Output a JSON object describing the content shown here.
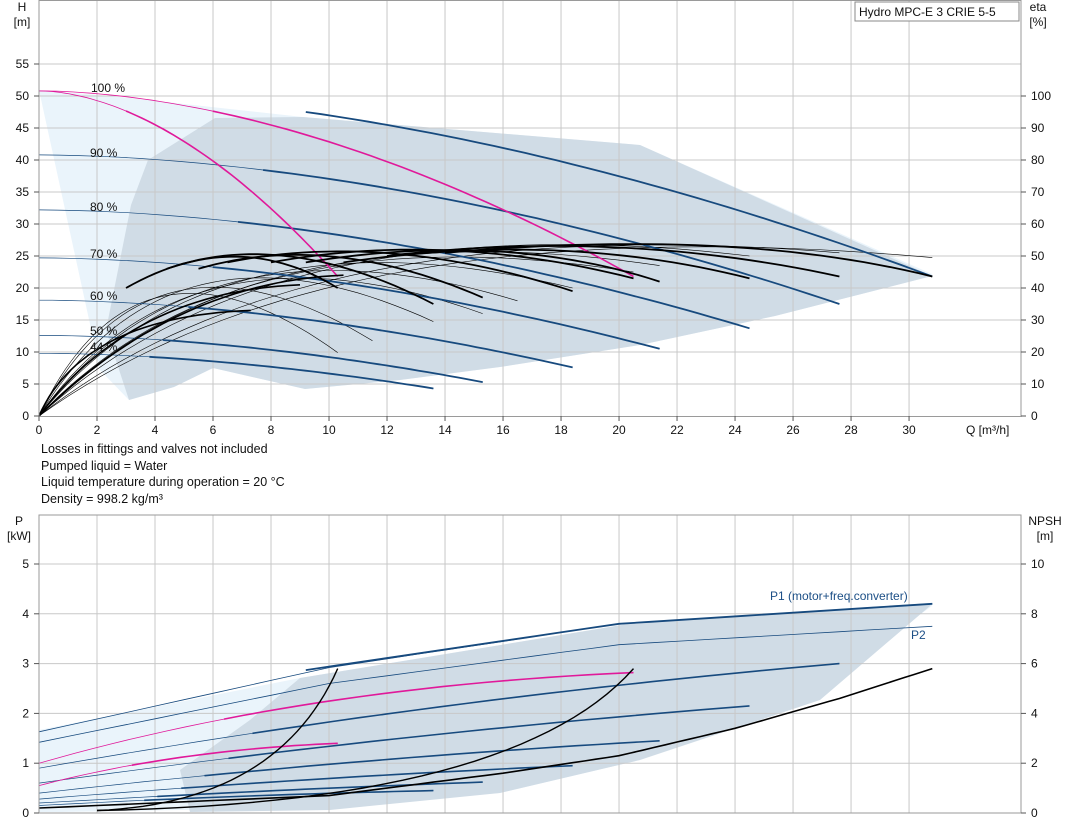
{
  "top_chart": {
    "title": "Hydro MPC-E 3 CRIE 5-5",
    "y_left_label": [
      "H",
      "[m]"
    ],
    "y_right_label": [
      "eta",
      "[%]"
    ],
    "x_label": "Q [m³/h]",
    "x_ticks": [
      0,
      2,
      4,
      6,
      8,
      10,
      12,
      14,
      16,
      18,
      20,
      22,
      24,
      26,
      28,
      30
    ],
    "y_left_ticks": [
      0,
      5,
      10,
      15,
      20,
      25,
      30,
      35,
      40,
      45,
      50,
      55
    ],
    "y_right_ticks": [
      0,
      10,
      20,
      30,
      40,
      50,
      60,
      70,
      80,
      90,
      100
    ],
    "speed_labels": [
      "100 %",
      "90 %",
      "80 %",
      "70 %",
      "60 %",
      "50 %",
      "44 %"
    ]
  },
  "notes": [
    "Losses in fittings and valves not included",
    "Pumped liquid = Water",
    "Liquid temperature during operation = 20 °C",
    "Density = 998.2 kg/m³"
  ],
  "bottom_chart": {
    "y_left_label": [
      "P",
      "[kW]"
    ],
    "y_right_label": [
      "NPSH",
      "[m]"
    ],
    "y_left_ticks": [
      0,
      1,
      2,
      3,
      4,
      5
    ],
    "y_right_ticks": [
      0,
      2,
      4,
      6,
      8,
      10
    ],
    "series_labels": [
      "P1 (motor+freq.converter)",
      "P2"
    ]
  },
  "colors": {
    "grid": "#c8c8c8",
    "area_dark": "#d0dce6",
    "area_light": "#eaf4fb",
    "curve_blue": "#174a7e",
    "curve_magenta": "#e0199a",
    "curve_black": "#000000",
    "label_blue": "#1c4f86"
  },
  "chart_data": [
    {
      "type": "line",
      "title": "Hydro MPC-E 3 CRIE 5-5",
      "xlabel": "Q [m³/h]",
      "ylabel": "H [m]",
      "y2label": "eta [%]",
      "xlim": [
        0,
        31
      ],
      "ylim": [
        0,
        55
      ],
      "y2lim": [
        0,
        100
      ],
      "grid": true,
      "head_curves": [
        {
          "name": "100 %",
          "pumps": 3,
          "H0": 50.8,
          "Qmax": 30.8,
          "Hend": 21.8
        },
        {
          "name": "100 %",
          "pumps": 2,
          "H0": 50.8,
          "Qmax": 20.5,
          "Hend": 21.8
        },
        {
          "name": "100 %",
          "pumps": 1,
          "H0": 50.8,
          "Qmax": 10.3,
          "Hend": 21.8
        },
        {
          "name": "90 %",
          "H0": 40.8,
          "Qmax": 27.6,
          "Hend": 17.5
        },
        {
          "name": "80 %",
          "H0": 32.2,
          "Qmax": 24.5,
          "Hend": 13.7
        },
        {
          "name": "70 %",
          "H0": 24.7,
          "Qmax": 21.4,
          "Hend": 10.5
        },
        {
          "name": "60 %",
          "H0": 18.1,
          "Qmax": 18.4,
          "Hend": 7.6
        },
        {
          "name": "50 %",
          "H0": 12.6,
          "Qmax": 15.3,
          "Hend": 5.3
        },
        {
          "name": "44 %",
          "H0": 9.8,
          "Qmax": 13.6,
          "Hend": 4.3
        }
      ],
      "efficiency_curves": [
        {
          "pumps": 1,
          "points": [
            [
              0,
              0
            ],
            [
              2,
              27
            ],
            [
              4,
              43
            ],
            [
              6,
              51
            ],
            [
              8,
              54
            ],
            [
              10,
              53
            ]
          ]
        },
        {
          "pumps": 2,
          "points": [
            [
              0,
              0
            ],
            [
              4,
              32
            ],
            [
              8,
              47
            ],
            [
              12,
              52.5
            ],
            [
              16,
              54
            ],
            [
              20.5,
              53
            ]
          ]
        },
        {
          "pumps": 3,
          "points": [
            [
              0,
              0
            ],
            [
              6,
              34
            ],
            [
              12,
              47
            ],
            [
              18,
              53
            ],
            [
              24,
              54
            ],
            [
              30.8,
              50
            ]
          ]
        }
      ]
    },
    {
      "type": "line",
      "xlabel": "Q [m³/h]",
      "ylabel": "P [kW]",
      "y2label": "NPSH [m]",
      "xlim": [
        0,
        31
      ],
      "ylim": [
        0,
        5
      ],
      "y2lim": [
        0,
        10
      ],
      "grid": true,
      "series": [
        {
          "name": "P1 (motor+freq.converter)",
          "points": [
            [
              0,
              1.63
            ],
            [
              10,
              2.92
            ],
            [
              20,
              3.8
            ],
            [
              30.8,
              4.2
            ]
          ]
        },
        {
          "name": "P2",
          "points": [
            [
              0,
              1.42
            ],
            [
              10,
              2.6
            ],
            [
              20,
              3.38
            ],
            [
              30.8,
              3.75
            ]
          ]
        },
        {
          "name": "NPSH",
          "axis": "right",
          "points": [
            [
              0,
              0.2
            ],
            [
              10,
              0.7
            ],
            [
              16,
              1.6
            ],
            [
              20,
              2.3
            ],
            [
              24,
              3.4
            ],
            [
              27.6,
              4.6
            ],
            [
              30.8,
              5.8
            ]
          ]
        }
      ]
    }
  ]
}
